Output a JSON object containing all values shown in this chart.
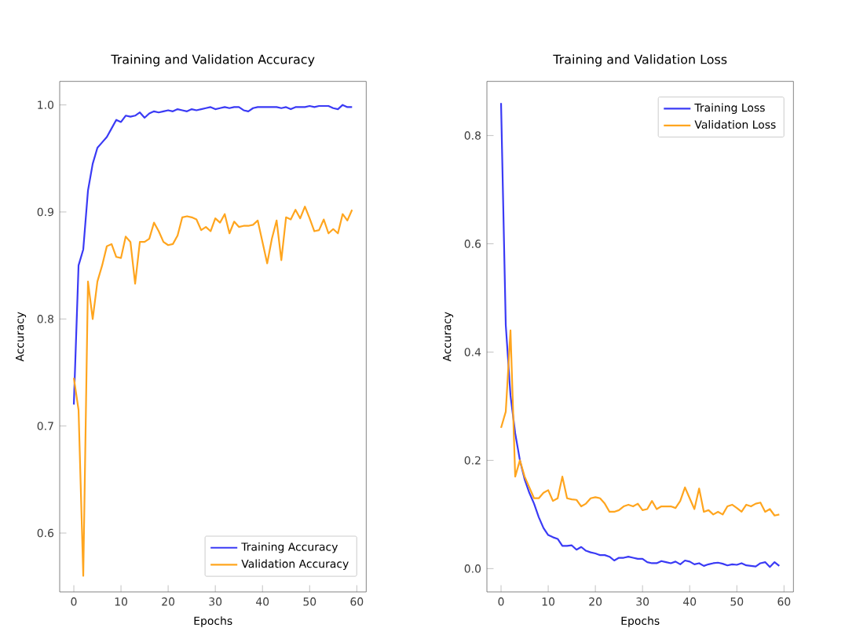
{
  "chart_data": [
    {
      "type": "line",
      "title": "Training and Validation Accuracy",
      "xlabel": "Epochs",
      "ylabel": "Accuracy",
      "x": [
        0,
        1,
        2,
        3,
        4,
        5,
        6,
        7,
        8,
        9,
        10,
        11,
        12,
        13,
        14,
        15,
        16,
        17,
        18,
        19,
        20,
        21,
        22,
        23,
        24,
        25,
        26,
        27,
        28,
        29,
        30,
        31,
        32,
        33,
        34,
        35,
        36,
        37,
        38,
        39,
        40,
        41,
        42,
        43,
        44,
        45,
        46,
        47,
        48,
        49,
        50,
        51,
        52,
        53,
        54,
        55,
        56,
        57,
        58,
        59
      ],
      "series": [
        {
          "name": "Training Accuracy",
          "color": "#3a3af5",
          "values": [
            0.72,
            0.85,
            0.865,
            0.92,
            0.945,
            0.96,
            0.965,
            0.97,
            0.978,
            0.986,
            0.984,
            0.99,
            0.989,
            0.99,
            0.993,
            0.988,
            0.992,
            0.994,
            0.993,
            0.994,
            0.995,
            0.994,
            0.996,
            0.995,
            0.994,
            0.996,
            0.995,
            0.996,
            0.997,
            0.998,
            0.996,
            0.997,
            0.998,
            0.997,
            0.998,
            0.998,
            0.995,
            0.994,
            0.997,
            0.998,
            0.998,
            0.998,
            0.998,
            0.998,
            0.997,
            0.998,
            0.996,
            0.998,
            0.998,
            0.998,
            0.999,
            0.998,
            0.999,
            0.999,
            0.999,
            0.997,
            0.996,
            1.0,
            0.998,
            0.998
          ]
        },
        {
          "name": "Validation Accuracy",
          "color": "#ffa51e",
          "values": [
            0.745,
            0.715,
            0.56,
            0.835,
            0.8,
            0.835,
            0.85,
            0.868,
            0.87,
            0.858,
            0.857,
            0.877,
            0.872,
            0.833,
            0.872,
            0.872,
            0.875,
            0.89,
            0.882,
            0.872,
            0.869,
            0.87,
            0.878,
            0.895,
            0.896,
            0.895,
            0.893,
            0.883,
            0.886,
            0.882,
            0.894,
            0.89,
            0.898,
            0.88,
            0.891,
            0.886,
            0.887,
            0.887,
            0.888,
            0.892,
            0.872,
            0.852,
            0.875,
            0.892,
            0.855,
            0.895,
            0.893,
            0.902,
            0.894,
            0.905,
            0.894,
            0.882,
            0.883,
            0.893,
            0.88,
            0.884,
            0.88,
            0.898,
            0.892,
            0.902
          ]
        }
      ],
      "xlim": [
        -3,
        62
      ],
      "xticks": [
        0,
        10,
        20,
        30,
        40,
        50,
        60
      ],
      "ylim": [
        0.545,
        1.022
      ],
      "yticks": [
        0.6,
        0.7,
        0.8,
        0.9,
        {
          "value": 1.0,
          "label": "1.0"
        }
      ],
      "legend": "bottom right",
      "grid": false
    },
    {
      "type": "line",
      "title": "Training and Validation Loss",
      "xlabel": "Epochs",
      "ylabel": "Accuracy",
      "x": [
        0,
        1,
        2,
        3,
        4,
        5,
        6,
        7,
        8,
        9,
        10,
        11,
        12,
        13,
        14,
        15,
        16,
        17,
        18,
        19,
        20,
        21,
        22,
        23,
        24,
        25,
        26,
        27,
        28,
        29,
        30,
        31,
        32,
        33,
        34,
        35,
        36,
        37,
        38,
        39,
        40,
        41,
        42,
        43,
        44,
        45,
        46,
        47,
        48,
        49,
        50,
        51,
        52,
        53,
        54,
        55,
        56,
        57,
        58,
        59
      ],
      "series": [
        {
          "name": "Training Loss",
          "color": "#3a3af5",
          "values": [
            0.86,
            0.45,
            0.32,
            0.25,
            0.2,
            0.165,
            0.14,
            0.12,
            0.095,
            0.075,
            0.062,
            0.058,
            0.055,
            0.042,
            0.042,
            0.043,
            0.035,
            0.04,
            0.033,
            0.03,
            0.028,
            0.025,
            0.025,
            0.022,
            0.015,
            0.02,
            0.02,
            0.022,
            0.02,
            0.018,
            0.018,
            0.012,
            0.01,
            0.01,
            0.014,
            0.012,
            0.01,
            0.013,
            0.008,
            0.015,
            0.013,
            0.008,
            0.01,
            0.005,
            0.008,
            0.01,
            0.011,
            0.009,
            0.006,
            0.008,
            0.007,
            0.01,
            0.006,
            0.005,
            0.004,
            0.01,
            0.012,
            0.003,
            0.012,
            0.005
          ]
        },
        {
          "name": "Validation Loss",
          "color": "#ffa51e",
          "values": [
            0.26,
            0.29,
            0.44,
            0.17,
            0.2,
            0.17,
            0.15,
            0.13,
            0.13,
            0.14,
            0.145,
            0.125,
            0.13,
            0.17,
            0.13,
            0.128,
            0.127,
            0.115,
            0.12,
            0.13,
            0.132,
            0.13,
            0.12,
            0.105,
            0.105,
            0.108,
            0.115,
            0.118,
            0.115,
            0.12,
            0.108,
            0.11,
            0.125,
            0.11,
            0.115,
            0.115,
            0.115,
            0.112,
            0.125,
            0.15,
            0.13,
            0.11,
            0.148,
            0.105,
            0.108,
            0.1,
            0.105,
            0.1,
            0.115,
            0.118,
            0.112,
            0.105,
            0.118,
            0.115,
            0.12,
            0.122,
            0.105,
            0.11,
            0.098,
            0.1
          ]
        }
      ],
      "xlim": [
        -3,
        62
      ],
      "xticks": [
        0,
        10,
        20,
        30,
        40,
        50,
        60
      ],
      "ylim": [
        -0.043,
        0.9
      ],
      "yticks": [
        {
          "value": 0.0,
          "label": "0.0"
        },
        0.2,
        0.4,
        0.6,
        0.8
      ],
      "legend": "top right",
      "grid": false
    }
  ]
}
